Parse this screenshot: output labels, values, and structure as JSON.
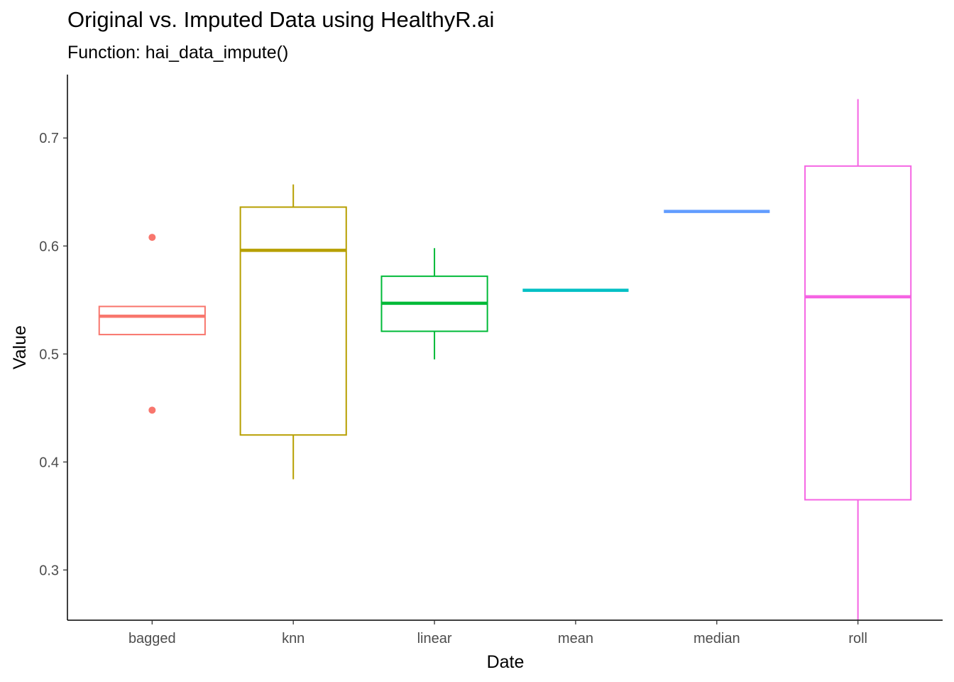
{
  "chart_data": {
    "type": "boxplot",
    "title": "Original vs. Imputed Data using HealthyR.ai",
    "subtitle": "Function: hai_data_impute()",
    "xlabel": "Date",
    "ylabel": "Value",
    "ylim": [
      0.2535,
      0.7587
    ],
    "yticks": [
      0.3,
      0.4,
      0.5,
      0.6,
      0.7
    ],
    "ytick_labels": [
      "0.3",
      "0.4",
      "0.5",
      "0.6",
      "0.7"
    ],
    "grid": false,
    "legend": "none",
    "categories": [
      "bagged",
      "knn",
      "linear",
      "mean",
      "median",
      "roll"
    ],
    "boxes": [
      {
        "category": "bagged",
        "color": "#F8766D",
        "whisker_low": 0.518,
        "q1": 0.518,
        "median": 0.535,
        "q3": 0.544,
        "whisker_high": 0.544,
        "outliers": [
          0.608,
          0.448
        ]
      },
      {
        "category": "knn",
        "color": "#B79F00",
        "whisker_low": 0.384,
        "q1": 0.425,
        "median": 0.596,
        "q3": 0.636,
        "whisker_high": 0.657,
        "outliers": []
      },
      {
        "category": "linear",
        "color": "#00BA38",
        "whisker_low": 0.495,
        "q1": 0.521,
        "median": 0.547,
        "q3": 0.572,
        "whisker_high": 0.598,
        "outliers": []
      },
      {
        "category": "mean",
        "color": "#00BFC4",
        "whisker_low": 0.559,
        "q1": 0.559,
        "median": 0.559,
        "q3": 0.559,
        "whisker_high": 0.559,
        "outliers": []
      },
      {
        "category": "median",
        "color": "#619CFF",
        "whisker_low": 0.632,
        "q1": 0.632,
        "median": 0.632,
        "q3": 0.632,
        "whisker_high": 0.632,
        "outliers": []
      },
      {
        "category": "roll",
        "color": "#F564E3",
        "whisker_low": 0.254,
        "q1": 0.365,
        "median": 0.553,
        "q3": 0.674,
        "whisker_high": 0.736,
        "outliers": []
      }
    ]
  }
}
